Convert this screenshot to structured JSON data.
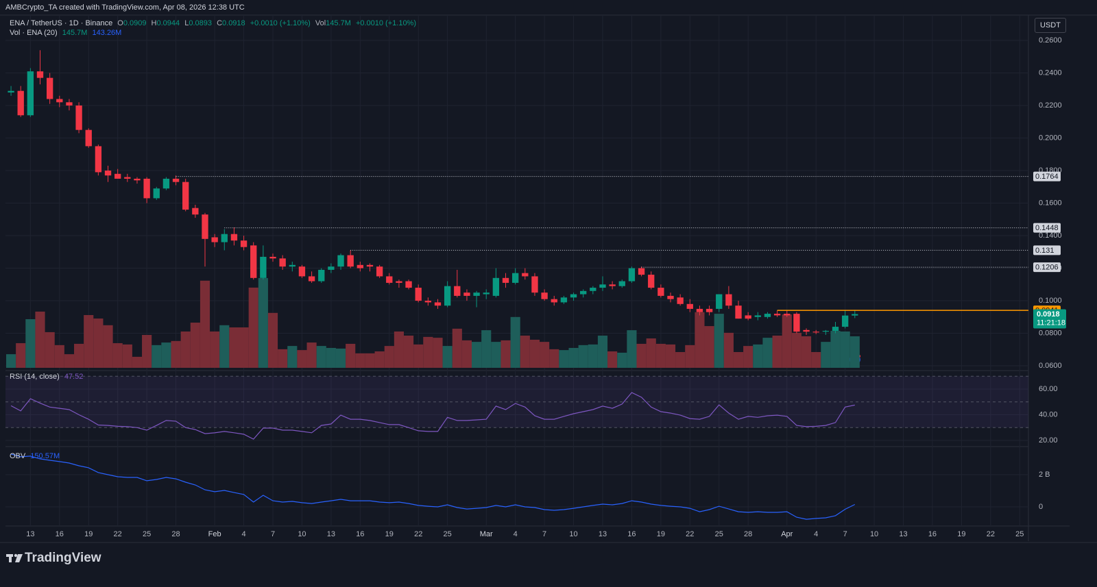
{
  "header": {
    "attribution": "AMBCrypto_TA created with TradingView.com, Apr 08, 2026 12:38 UTC",
    "brand": "TradingView",
    "currency_button": "USDT"
  },
  "chart_data": [
    {
      "type": "candlestick",
      "symbol": "ENA / TetherUS · 1D · Binance",
      "legend": {
        "fields": [
          {
            "label": "O",
            "value": "0.0909"
          },
          {
            "label": "H",
            "value": "0.0944"
          },
          {
            "label": "L",
            "value": "0.0893"
          },
          {
            "label": "C",
            "value": "0.0918"
          }
        ],
        "change": "+0.0010 (+1.10%)",
        "vol_label": "Vol",
        "vol_value": "145.7M",
        "vol_change": "+0.0010 (+1.10%)"
      },
      "up_color": "#089981",
      "down_color": "#f23645",
      "volume_up_color": "#1e5e5a",
      "volume_down_color": "#7a2d36",
      "open": [
        0.228,
        0.229,
        0.214,
        0.241,
        0.237,
        0.224,
        0.222,
        0.22,
        0.205,
        0.195,
        0.18,
        0.178,
        0.176,
        0.175,
        0.175,
        0.163,
        0.169,
        0.175,
        0.173,
        0.157,
        0.153,
        0.139,
        0.136,
        0.141,
        0.137,
        0.134,
        0.114,
        0.127,
        0.126,
        0.121,
        0.121,
        0.115,
        0.112,
        0.119,
        0.121,
        0.128,
        0.122,
        0.122,
        0.121,
        0.115,
        0.112,
        0.112,
        0.108,
        0.1,
        0.099,
        0.097,
        0.109,
        0.105,
        0.103,
        0.104,
        0.103,
        0.114,
        0.111,
        0.117,
        0.115,
        0.105,
        0.101,
        0.099,
        0.102,
        0.104,
        0.106,
        0.108,
        0.11,
        0.109,
        0.112,
        0.12,
        0.116,
        0.108,
        0.103,
        0.102,
        0.098,
        0.095,
        0.095,
        0.095,
        0.104,
        0.097,
        0.091,
        0.09,
        0.09,
        0.092,
        0.092,
        0.092,
        0.082,
        0.081,
        0.081,
        0.0815,
        0.084,
        0.0909
      ],
      "high": [
        0.232,
        0.232,
        0.243,
        0.254,
        0.24,
        0.226,
        0.224,
        0.222,
        0.206,
        0.196,
        0.183,
        0.181,
        0.178,
        0.176,
        0.176,
        0.17,
        0.176,
        0.177,
        0.175,
        0.159,
        0.154,
        0.141,
        0.144,
        0.145,
        0.14,
        0.136,
        0.134,
        0.129,
        0.128,
        0.124,
        0.122,
        0.118,
        0.12,
        0.123,
        0.129,
        0.131,
        0.124,
        0.123,
        0.122,
        0.117,
        0.113,
        0.113,
        0.11,
        0.102,
        0.101,
        0.112,
        0.119,
        0.107,
        0.106,
        0.107,
        0.12,
        0.117,
        0.12,
        0.12,
        0.117,
        0.107,
        0.103,
        0.103,
        0.105,
        0.107,
        0.109,
        0.115,
        0.112,
        0.113,
        0.121,
        0.121,
        0.118,
        0.11,
        0.105,
        0.104,
        0.101,
        0.097,
        0.097,
        0.104,
        0.109,
        0.1,
        0.093,
        0.093,
        0.093,
        0.094,
        0.094,
        0.093,
        0.083,
        0.082,
        0.082,
        0.087,
        0.094,
        0.0944
      ],
      "low": [
        0.226,
        0.213,
        0.213,
        0.233,
        0.221,
        0.219,
        0.217,
        0.203,
        0.194,
        0.177,
        0.173,
        0.175,
        0.173,
        0.172,
        0.16,
        0.162,
        0.168,
        0.171,
        0.155,
        0.151,
        0.121,
        0.133,
        0.131,
        0.134,
        0.131,
        0.113,
        0.113,
        0.124,
        0.119,
        0.118,
        0.114,
        0.111,
        0.111,
        0.117,
        0.119,
        0.12,
        0.118,
        0.118,
        0.114,
        0.11,
        0.108,
        0.107,
        0.099,
        0.097,
        0.095,
        0.096,
        0.102,
        0.1,
        0.096,
        0.101,
        0.102,
        0.108,
        0.11,
        0.113,
        0.103,
        0.1,
        0.097,
        0.098,
        0.1,
        0.102,
        0.104,
        0.106,
        0.107,
        0.108,
        0.111,
        0.115,
        0.107,
        0.102,
        0.099,
        0.097,
        0.093,
        0.091,
        0.091,
        0.093,
        0.095,
        0.089,
        0.088,
        0.088,
        0.089,
        0.09,
        0.09,
        0.08,
        0.079,
        0.0795,
        0.079,
        0.08,
        0.083,
        0.0893
      ],
      "close": [
        0.229,
        0.214,
        0.241,
        0.237,
        0.224,
        0.222,
        0.22,
        0.205,
        0.195,
        0.179,
        0.177,
        0.175,
        0.175,
        0.174,
        0.163,
        0.169,
        0.175,
        0.173,
        0.156,
        0.153,
        0.138,
        0.136,
        0.141,
        0.137,
        0.133,
        0.114,
        0.127,
        0.126,
        0.121,
        0.122,
        0.115,
        0.112,
        0.119,
        0.121,
        0.128,
        0.121,
        0.12,
        0.121,
        0.115,
        0.111,
        0.111,
        0.108,
        0.1,
        0.099,
        0.097,
        0.109,
        0.103,
        0.103,
        0.105,
        0.105,
        0.114,
        0.111,
        0.117,
        0.115,
        0.105,
        0.101,
        0.099,
        0.102,
        0.104,
        0.106,
        0.108,
        0.11,
        0.109,
        0.112,
        0.12,
        0.116,
        0.108,
        0.103,
        0.101,
        0.098,
        0.095,
        0.093,
        0.093,
        0.104,
        0.097,
        0.089,
        0.089,
        0.091,
        0.092,
        0.091,
        0.091,
        0.081,
        0.081,
        0.0805,
        0.0815,
        0.084,
        0.0909,
        0.0918
      ],
      "volume": {
        "name": "Vol · ENA (20)",
        "current_label": "145.7M",
        "ma_label": "143.26M",
        "values": [
          63000000,
          114000000,
          225000000,
          260000000,
          165000000,
          105000000,
          63000000,
          111000000,
          244000000,
          228000000,
          197000000,
          114000000,
          108000000,
          51000000,
          152000000,
          105000000,
          117000000,
          124000000,
          168000000,
          209000000,
          403000000,
          168000000,
          197000000,
          187000000,
          187000000,
          371000000,
          415000000,
          254000000,
          86000000,
          101000000,
          82000000,
          117000000,
          101000000,
          92000000,
          89000000,
          111000000,
          67000000,
          67000000,
          76000000,
          101000000,
          168000000,
          149000000,
          108000000,
          143000000,
          139000000,
          101000000,
          181000000,
          127000000,
          120000000,
          174000000,
          120000000,
          127000000,
          235000000,
          149000000,
          130000000,
          120000000,
          86000000,
          82000000,
          92000000,
          105000000,
          108000000,
          149000000,
          76000000,
          70000000,
          174000000,
          111000000,
          136000000,
          111000000,
          108000000,
          73000000,
          105000000,
          257000000,
          193000000,
          250000000,
          162000000,
          73000000,
          101000000,
          108000000,
          139000000,
          149000000,
          247000000,
          162000000,
          146000000,
          73000000,
          120000000,
          171000000,
          168000000,
          145700000
        ]
      },
      "levels": [
        {
          "value": 0.1764,
          "start": 17,
          "color": "#d1d4dc"
        },
        {
          "value": 0.1448,
          "start": 22,
          "color": "#d1d4dc"
        },
        {
          "value": 0.131,
          "start": 35,
          "color": "#d1d4dc"
        },
        {
          "value": 0.1206,
          "start": 65,
          "color": "#d1d4dc"
        },
        {
          "value": 0.0941,
          "start": 79,
          "color": "#ff9800"
        }
      ],
      "last_price": 0.0918,
      "countdown": "11:21:18",
      "ylim": [
        0.0575,
        0.2756
      ],
      "yticks": [
        {
          "value": 0.06,
          "label": "0.0600"
        },
        {
          "value": 0.08,
          "label": "0.0800"
        },
        {
          "value": 0.1,
          "label": "0.1000"
        },
        {
          "value": 0.12,
          "label": "0.1200"
        },
        {
          "value": 0.14,
          "label": "0.1400"
        },
        {
          "value": 0.16,
          "label": "0.1600"
        },
        {
          "value": 0.18,
          "label": "0.1800"
        },
        {
          "value": 0.2,
          "label": "0.2000"
        },
        {
          "value": 0.22,
          "label": "0.2200"
        },
        {
          "value": 0.24,
          "label": "0.2400"
        },
        {
          "value": 0.26,
          "label": "0.2600"
        }
      ],
      "xlim": [
        -0.57,
        104.9
      ],
      "xticks": [
        {
          "value": 2,
          "label": "13"
        },
        {
          "value": 5,
          "label": "16"
        },
        {
          "value": 8,
          "label": "19"
        },
        {
          "value": 11,
          "label": "22"
        },
        {
          "value": 14,
          "label": "25"
        },
        {
          "value": 17,
          "label": "28"
        },
        {
          "value": 21,
          "label": "Feb"
        },
        {
          "value": 24,
          "label": "4"
        },
        {
          "value": 27,
          "label": "7"
        },
        {
          "value": 30,
          "label": "10"
        },
        {
          "value": 33,
          "label": "13"
        },
        {
          "value": 36,
          "label": "16"
        },
        {
          "value": 39,
          "label": "19"
        },
        {
          "value": 42,
          "label": "22"
        },
        {
          "value": 45,
          "label": "25"
        },
        {
          "value": 49,
          "label": "Mar"
        },
        {
          "value": 52,
          "label": "4"
        },
        {
          "value": 55,
          "label": "7"
        },
        {
          "value": 58,
          "label": "10"
        },
        {
          "value": 61,
          "label": "13"
        },
        {
          "value": 64,
          "label": "16"
        },
        {
          "value": 67,
          "label": "19"
        },
        {
          "value": 70,
          "label": "22"
        },
        {
          "value": 73,
          "label": "25"
        },
        {
          "value": 76,
          "label": "28"
        },
        {
          "value": 80,
          "label": "Apr"
        },
        {
          "value": 83,
          "label": "4"
        },
        {
          "value": 86,
          "label": "7"
        },
        {
          "value": 89,
          "label": "10"
        },
        {
          "value": 92,
          "label": "13"
        },
        {
          "value": 95,
          "label": "16"
        },
        {
          "value": 98,
          "label": "19"
        },
        {
          "value": 101,
          "label": "22"
        },
        {
          "value": 104,
          "label": "25"
        }
      ],
      "grid": true
    },
    {
      "type": "line",
      "name": "RSI (14, close)",
      "current": 47.52,
      "color": "#7e57c2",
      "values": [
        47,
        43,
        52.5,
        49,
        46,
        45,
        44,
        40,
        36.5,
        32,
        31.7,
        31,
        30.7,
        30,
        28,
        31.7,
        35.5,
        35,
        30,
        28.5,
        25.3,
        25.9,
        27,
        26,
        24.8,
        21,
        29.6,
        29.6,
        28,
        28,
        27,
        26,
        31.7,
        32.8,
        39.7,
        36.5,
        36.5,
        35.5,
        33.9,
        32.3,
        32.3,
        30,
        27.5,
        27,
        27,
        38,
        35.5,
        35.5,
        36,
        36.5,
        46.7,
        44,
        48.8,
        46,
        39.2,
        36.5,
        36.5,
        38.7,
        40.8,
        42.4,
        44,
        46.7,
        45,
        48.3,
        57.3,
        53.6,
        46,
        42.4,
        41.3,
        39.7,
        37,
        36.5,
        38.7,
        47.7,
        41.3,
        36.5,
        38.7,
        38,
        39.2,
        39.7,
        38.7,
        31.7,
        30.7,
        31,
        31.7,
        33.9,
        46,
        47.52
      ],
      "bands": [
        30,
        50,
        70
      ],
      "ylim": [
        15.2,
        74.4
      ],
      "yticks": [
        {
          "value": 20,
          "label": "20.00"
        },
        {
          "value": 40,
          "label": "40.00"
        },
        {
          "value": 60,
          "label": "60.00"
        }
      ]
    },
    {
      "type": "line",
      "name": "OBV",
      "current_label": "150.57M",
      "color": "#2962ff",
      "values": [
        3280000000,
        3110000000,
        3150000000,
        2980000000,
        2890000000,
        2810000000,
        2720000000,
        2550000000,
        2430000000,
        2130000000,
        2000000000,
        1870000000,
        1830000000,
        1830000000,
        1620000000,
        1700000000,
        1830000000,
        1740000000,
        1530000000,
        1360000000,
        1060000000,
        940000000,
        1020000000,
        890000000,
        770000000,
        300000000,
        720000000,
        380000000,
        300000000,
        340000000,
        260000000,
        210000000,
        300000000,
        380000000,
        470000000,
        380000000,
        380000000,
        380000000,
        300000000,
        260000000,
        300000000,
        210000000,
        90000000,
        40000000,
        0,
        130000000,
        -40000000,
        -130000000,
        -90000000,
        -40000000,
        90000000,
        0,
        130000000,
        0,
        -40000000,
        -170000000,
        -210000000,
        -170000000,
        -90000000,
        0,
        90000000,
        170000000,
        130000000,
        210000000,
        380000000,
        300000000,
        170000000,
        90000000,
        40000000,
        0,
        -90000000,
        -300000000,
        -170000000,
        40000000,
        -130000000,
        -300000000,
        -340000000,
        -300000000,
        -340000000,
        -340000000,
        -300000000,
        -640000000,
        -770000000,
        -720000000,
        -680000000,
        -550000000,
        -150000000,
        150570000
      ],
      "ylim": [
        -1190000000,
        3700000000
      ],
      "yticks": [
        0,
        {
          "value": 2000000000,
          "label": "2 B"
        }
      ]
    }
  ]
}
